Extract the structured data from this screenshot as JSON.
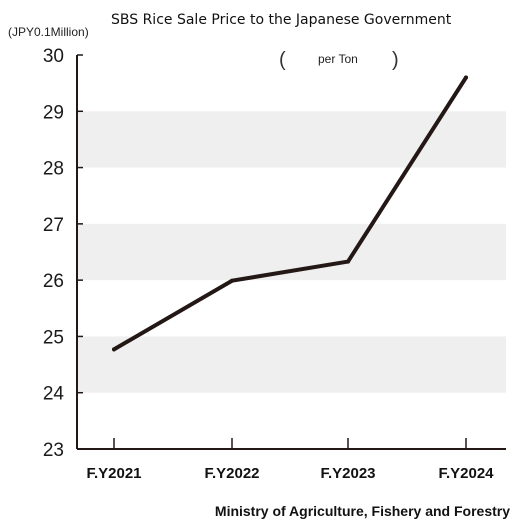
{
  "colors": {
    "line": "#231815",
    "band": "#efefef",
    "axis": "#231815"
  },
  "chart_data": {
    "type": "line",
    "title": "SBS Rice Sale Price to the Japanese Government",
    "subtitle": "per Ton",
    "ylabel": "(JPY0.1Million)",
    "xlabel": "",
    "categories": [
      "F.Y2021",
      "F.Y2022",
      "F.Y2023",
      "F.Y2024"
    ],
    "series": [
      {
        "values": [
          24.77,
          25.99,
          26.33,
          29.6
        ]
      }
    ],
    "ylim": [
      23,
      30
    ],
    "yticks": [
      23,
      24,
      25,
      26,
      27,
      28,
      29,
      30
    ],
    "grid": false,
    "alternating_bands": true,
    "source": "Ministry of Agriculture, Fishery and Forestry"
  }
}
